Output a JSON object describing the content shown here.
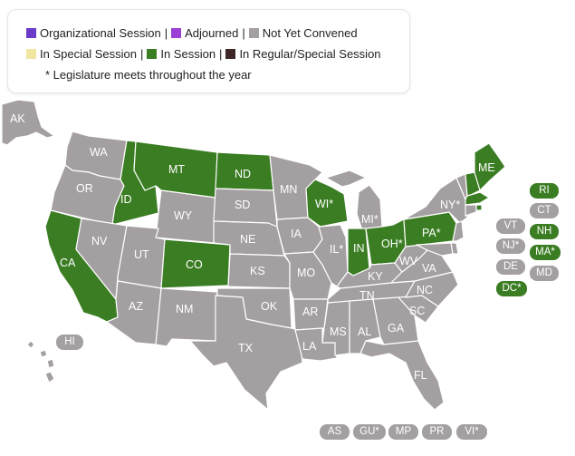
{
  "colors": {
    "organizational": "#6a3cc9",
    "adjourned": "#9b3fd6",
    "not_yet_convened": "#a49fa0",
    "special_session": "#f1e6a0",
    "in_session": "#3b7d23",
    "regular_special": "#3c2626",
    "border": "#ffffff"
  },
  "legend": {
    "organizational": "Organizational Session",
    "adjourned": "Adjourned",
    "not_yet_convened": "Not Yet Convened",
    "special_session": "In Special Session",
    "in_session": "In Session",
    "regular_special": "In Regular/Special Session",
    "separator": "|",
    "note": "* Legislature meets throughout the year"
  },
  "states": [
    {
      "abbr": "AK",
      "label": "AK",
      "status": "not_yet_convened"
    },
    {
      "abbr": "HI",
      "label": "HI",
      "status": "not_yet_convened"
    },
    {
      "abbr": "WA",
      "label": "WA",
      "status": "not_yet_convened"
    },
    {
      "abbr": "OR",
      "label": "OR",
      "status": "not_yet_convened"
    },
    {
      "abbr": "CA",
      "label": "CA",
      "status": "in_session"
    },
    {
      "abbr": "ID",
      "label": "ID",
      "status": "in_session"
    },
    {
      "abbr": "NV",
      "label": "NV",
      "status": "not_yet_convened"
    },
    {
      "abbr": "MT",
      "label": "MT",
      "status": "in_session"
    },
    {
      "abbr": "WY",
      "label": "WY",
      "status": "not_yet_convened"
    },
    {
      "abbr": "UT",
      "label": "UT",
      "status": "not_yet_convened"
    },
    {
      "abbr": "AZ",
      "label": "AZ",
      "status": "not_yet_convened"
    },
    {
      "abbr": "CO",
      "label": "CO",
      "status": "in_session"
    },
    {
      "abbr": "NM",
      "label": "NM",
      "status": "not_yet_convened"
    },
    {
      "abbr": "ND",
      "label": "ND",
      "status": "in_session"
    },
    {
      "abbr": "SD",
      "label": "SD",
      "status": "not_yet_convened"
    },
    {
      "abbr": "NE",
      "label": "NE",
      "status": "not_yet_convened"
    },
    {
      "abbr": "KS",
      "label": "KS",
      "status": "not_yet_convened"
    },
    {
      "abbr": "OK",
      "label": "OK",
      "status": "not_yet_convened"
    },
    {
      "abbr": "TX",
      "label": "TX",
      "status": "not_yet_convened"
    },
    {
      "abbr": "MN",
      "label": "MN",
      "status": "not_yet_convened"
    },
    {
      "abbr": "IA",
      "label": "IA",
      "status": "not_yet_convened"
    },
    {
      "abbr": "MO",
      "label": "MO",
      "status": "not_yet_convened"
    },
    {
      "abbr": "AR",
      "label": "AR",
      "status": "not_yet_convened"
    },
    {
      "abbr": "LA",
      "label": "LA",
      "status": "not_yet_convened"
    },
    {
      "abbr": "WI",
      "label": "WI*",
      "status": "in_session"
    },
    {
      "abbr": "IL",
      "label": "IL*",
      "status": "not_yet_convened"
    },
    {
      "abbr": "MI",
      "label": "MI*",
      "status": "not_yet_convened"
    },
    {
      "abbr": "IN",
      "label": "IN",
      "status": "in_session"
    },
    {
      "abbr": "OH",
      "label": "OH*",
      "status": "in_session"
    },
    {
      "abbr": "KY",
      "label": "KY",
      "status": "not_yet_convened"
    },
    {
      "abbr": "TN",
      "label": "TN",
      "status": "not_yet_convened"
    },
    {
      "abbr": "MS",
      "label": "MS",
      "status": "not_yet_convened"
    },
    {
      "abbr": "AL",
      "label": "AL",
      "status": "not_yet_convened"
    },
    {
      "abbr": "GA",
      "label": "GA",
      "status": "not_yet_convened"
    },
    {
      "abbr": "FL",
      "label": "FL",
      "status": "not_yet_convened"
    },
    {
      "abbr": "SC",
      "label": "SC",
      "status": "not_yet_convened"
    },
    {
      "abbr": "NC",
      "label": "NC",
      "status": "not_yet_convened"
    },
    {
      "abbr": "VA",
      "label": "VA",
      "status": "not_yet_convened"
    },
    {
      "abbr": "WV",
      "label": "WV",
      "status": "not_yet_convened"
    },
    {
      "abbr": "PA",
      "label": "PA*",
      "status": "in_session"
    },
    {
      "abbr": "NY",
      "label": "NY*",
      "status": "not_yet_convened"
    },
    {
      "abbr": "ME",
      "label": "ME",
      "status": "in_session"
    },
    {
      "abbr": "VT",
      "label": "VT",
      "status": "not_yet_convened"
    },
    {
      "abbr": "NH",
      "label": "NH",
      "status": "in_session"
    },
    {
      "abbr": "MA",
      "label": "MA*",
      "status": "in_session"
    },
    {
      "abbr": "RI",
      "label": "RI",
      "status": "in_session"
    },
    {
      "abbr": "CT",
      "label": "CT",
      "status": "not_yet_convened"
    },
    {
      "abbr": "NJ",
      "label": "NJ*",
      "status": "not_yet_convened"
    },
    {
      "abbr": "DE",
      "label": "DE",
      "status": "not_yet_convened"
    },
    {
      "abbr": "MD",
      "label": "MD",
      "status": "not_yet_convened"
    },
    {
      "abbr": "DC",
      "label": "DC*",
      "status": "in_session"
    },
    {
      "abbr": "AS",
      "label": "AS",
      "status": "not_yet_convened"
    },
    {
      "abbr": "GU",
      "label": "GU*",
      "status": "not_yet_convened"
    },
    {
      "abbr": "MP",
      "label": "MP",
      "status": "not_yet_convened"
    },
    {
      "abbr": "PR",
      "label": "PR",
      "status": "not_yet_convened"
    },
    {
      "abbr": "VI",
      "label": "VI*",
      "status": "not_yet_convened"
    }
  ]
}
